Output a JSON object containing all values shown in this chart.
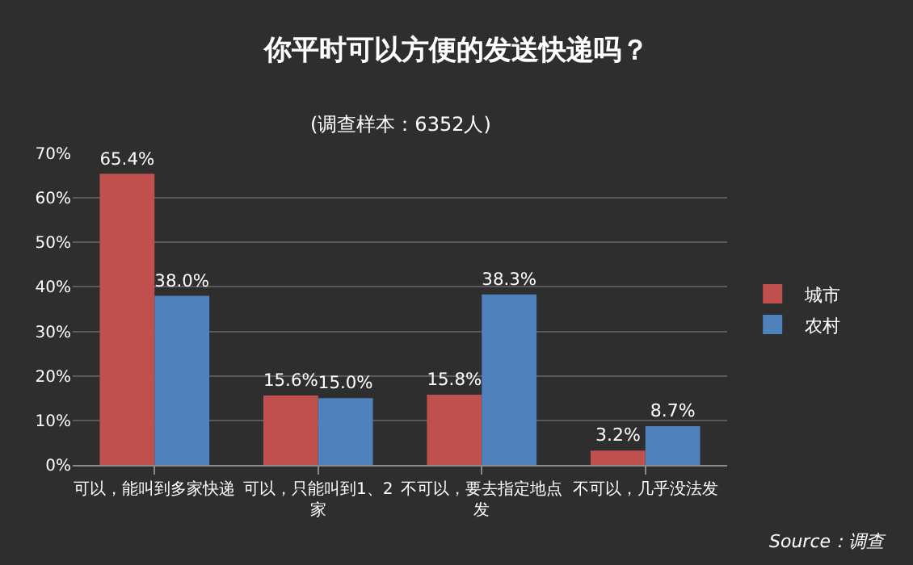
{
  "chart_data": {
    "type": "bar",
    "title": "你平时可以方便的发送快递吗？",
    "subtitle": "(调查样本：6352人)",
    "categories": [
      "可以，能叫到多家快递",
      "可以，只能叫到1、2家",
      "不可以，要去指定地点发",
      "不可以，几乎没法发"
    ],
    "series": [
      {
        "name": "城市",
        "color": "#c0504d",
        "values": [
          65.4,
          15.6,
          15.8,
          3.2
        ],
        "value_labels": [
          "65.4%",
          "15.6%",
          "15.8%",
          "3.2%"
        ]
      },
      {
        "name": "农村",
        "color": "#4f81bd",
        "values": [
          38.0,
          15.0,
          38.3,
          8.7
        ],
        "value_labels": [
          "38.0%",
          "15.0%",
          "38.3%",
          "8.7%"
        ]
      }
    ],
    "ylim": [
      0,
      70
    ],
    "yticks": [
      {
        "value": 0,
        "label": "0%"
      },
      {
        "value": 10,
        "label": "10%"
      },
      {
        "value": 20,
        "label": "20%"
      },
      {
        "value": 30,
        "label": "30%"
      },
      {
        "value": 40,
        "label": "40%"
      },
      {
        "value": 50,
        "label": "50%"
      },
      {
        "value": 60,
        "label": "60%"
      },
      {
        "value": 70,
        "label": "70%"
      }
    ],
    "grid": "y",
    "legend": "right",
    "annotations": [
      "Source：调查"
    ]
  }
}
